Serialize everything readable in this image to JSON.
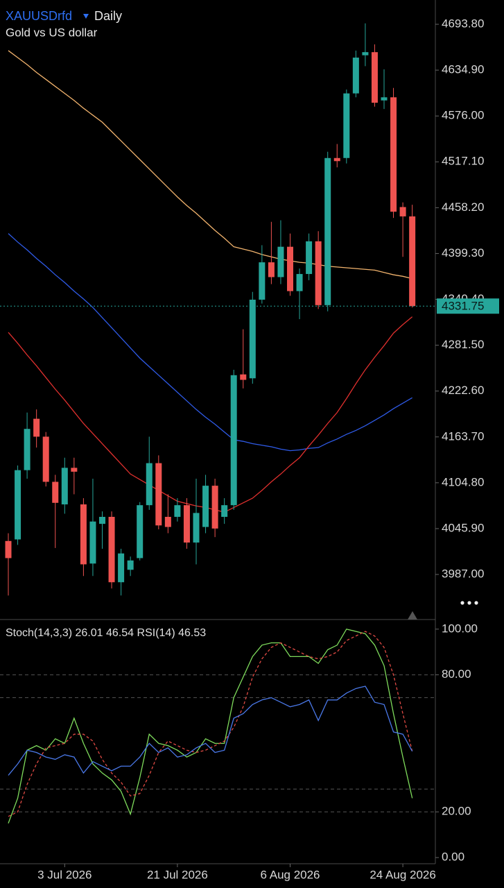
{
  "chart_data": [
    {
      "type": "candlestick",
      "title": "XAUUSDrfd",
      "timeframe": "Daily",
      "subtitle": "Gold vs US dollar",
      "categories": [
        null,
        null,
        null,
        null,
        null,
        null,
        "3 Jul 2026",
        null,
        null,
        null,
        null,
        null,
        null,
        null,
        null,
        null,
        null,
        null,
        "21 Jul 2026",
        null,
        null,
        null,
        null,
        null,
        null,
        null,
        null,
        null,
        null,
        null,
        "6 Aug 2026",
        null,
        null,
        null,
        null,
        null,
        null,
        null,
        null,
        null,
        null,
        null,
        "24 Aug 2026",
        null
      ],
      "open": [
        4030,
        4032,
        4121,
        4187,
        4164,
        4106,
        4077,
        4124,
        4077,
        4001,
        4052,
        4061,
        3977,
        3993,
        4008,
        4076,
        4130,
        4061,
        4061,
        4076,
        4028,
        4048,
        4101,
        4061,
        4076,
        4244,
        4239,
        4340,
        4388,
        4369,
        4408,
        4351,
        4373,
        4415,
        4333,
        4522,
        4522,
        4605,
        4654,
        4658,
        4596,
        4600,
        4459,
        4447
      ],
      "high": [
        4040,
        4127,
        4195,
        4199,
        4170,
        4115,
        4137,
        4137,
        4085,
        4110,
        4068,
        4068,
        4020,
        4010,
        4080,
        4164,
        4140,
        4090,
        4085,
        4085,
        4110,
        4115,
        4110,
        4085,
        4250,
        4302,
        4350,
        4410,
        4440,
        4442,
        4425,
        4380,
        4425,
        4428,
        4530,
        4540,
        4610,
        4660,
        4695,
        4668,
        4636,
        4612,
        4465,
        4462
      ],
      "low": [
        3960,
        4025,
        4110,
        4150,
        4100,
        4021,
        4065,
        4090,
        3985,
        3985,
        4020,
        3969,
        3960,
        3985,
        4005,
        4070,
        4045,
        4040,
        4055,
        4020,
        4000,
        4040,
        4035,
        4052,
        4070,
        4226,
        4232,
        4335,
        4360,
        4360,
        4345,
        4315,
        4365,
        4328,
        4325,
        4510,
        4515,
        4600,
        4640,
        4588,
        4585,
        4445,
        4395,
        4330
      ],
      "close": [
        4008,
        4121,
        4174,
        4164,
        4106,
        4079,
        4124,
        4119,
        4000,
        4055,
        4061,
        3977,
        4014,
        4005,
        4076,
        4130,
        4050,
        4048,
        4076,
        4028,
        4066,
        4101,
        4046,
        4076,
        4243,
        4237,
        4340,
        4388,
        4369,
        4408,
        4351,
        4373,
        4415,
        4333,
        4522,
        4518,
        4605,
        4651,
        4658,
        4593,
        4600,
        4453,
        4447,
        4331.75
      ],
      "up_color": "#26a69a",
      "down_color": "#ef5350",
      "moving_averages": [
        {
          "color": "#f3b46e",
          "values": [
            4660,
            4651,
            4642,
            4632,
            4623,
            4614,
            4605,
            4596,
            4586,
            4577,
            4568,
            4556,
            4544,
            4532,
            4520,
            4508,
            4496,
            4484,
            4472,
            4461,
            4451,
            4440,
            4429,
            4419,
            4408,
            4405,
            4402,
            4398,
            4395,
            4392,
            4390,
            4388,
            4387,
            4385,
            4383,
            4382,
            4381,
            4380,
            4379,
            4378,
            4375,
            4372,
            4370,
            4367
          ]
        },
        {
          "color": "#2f5be8",
          "values": [
            4425,
            4414,
            4404,
            4393,
            4383,
            4372,
            4362,
            4351,
            4341,
            4330,
            4317,
            4304,
            4291,
            4278,
            4265,
            4254,
            4243,
            4232,
            4221,
            4210,
            4199,
            4189,
            4180,
            4170,
            4160,
            4158,
            4155,
            4153,
            4151,
            4148,
            4146,
            4147,
            4149,
            4150,
            4156,
            4161,
            4167,
            4172,
            4178,
            4185,
            4192,
            4200,
            4207,
            4214
          ]
        },
        {
          "color": "#e0302e",
          "values": [
            4298,
            4284,
            4269,
            4255,
            4240,
            4225,
            4211,
            4196,
            4181,
            4168,
            4155,
            4142,
            4129,
            4116,
            4109,
            4102,
            4095,
            4088,
            4081,
            4078,
            4075,
            4073,
            4070,
            4067,
            4073,
            4079,
            4085,
            4095,
            4106,
            4116,
            4127,
            4137,
            4152,
            4166,
            4181,
            4195,
            4213,
            4232,
            4250,
            4266,
            4281,
            4297,
            4308,
            4318
          ]
        }
      ],
      "current_price": {
        "value": 4331.75,
        "label": "4331.75"
      },
      "ylim": [
        3929.1,
        4725.0
      ],
      "yticks": [
        {
          "value": 4693.8,
          "label": "4693.80"
        },
        {
          "value": 4634.9,
          "label": "4634.90"
        },
        {
          "value": 4576,
          "label": "4576.00"
        },
        {
          "value": 4517.1,
          "label": "4517.10"
        },
        {
          "value": 4458.2,
          "label": "4458.20"
        },
        {
          "value": 4399.3,
          "label": "4399.30"
        },
        {
          "value": 4340.4,
          "label": "4340.40"
        },
        {
          "value": 4281.5,
          "label": "4281.50"
        },
        {
          "value": 4222.6,
          "label": "4222.60"
        },
        {
          "value": 4163.7,
          "label": "4163.70"
        },
        {
          "value": 4104.8,
          "label": "4104.80"
        },
        {
          "value": 4045.9,
          "label": "4045.90"
        },
        {
          "value": 3987,
          "label": "3987.00"
        }
      ]
    },
    {
      "type": "line",
      "title": "Stoch(14,3,3)",
      "title2": "RSI(14)",
      "series": [
        {
          "color": "#7fdc5c",
          "values": [
            15,
            26,
            47,
            49,
            47,
            52,
            50,
            61,
            50,
            41,
            37,
            34,
            29,
            19,
            35,
            54,
            50,
            49,
            47,
            44,
            46,
            52,
            50,
            50,
            70,
            79,
            88,
            93,
            94,
            94,
            88,
            88,
            88,
            85,
            91,
            93,
            100,
            99,
            98,
            93,
            84,
            63,
            44,
            26.01
          ]
        },
        {
          "color": "#e04a44",
          "dashed": true,
          "values": [
            18,
            20,
            32,
            41,
            48,
            49,
            50,
            54,
            54,
            51,
            43,
            37,
            33,
            27,
            28,
            36,
            46,
            51,
            49,
            47,
            46,
            47,
            49,
            51,
            57,
            66,
            79,
            87,
            92,
            94,
            92,
            90,
            88,
            87,
            88,
            90,
            95,
            97,
            99,
            97,
            92,
            80,
            63,
            46.54
          ]
        },
        {
          "color": "#4a78e8",
          "values": [
            36,
            41,
            47,
            46,
            44,
            43,
            45,
            44,
            37,
            42,
            40,
            38,
            40,
            40,
            44,
            50,
            46,
            48,
            44,
            45,
            48,
            50,
            46,
            47,
            61,
            63,
            67,
            69,
            70,
            68,
            66,
            67,
            69,
            60,
            69,
            69,
            72,
            74,
            75,
            68,
            67,
            55,
            54,
            46.53
          ]
        }
      ],
      "levels": [
        80,
        70,
        30,
        20
      ],
      "ylim": [
        -2.7,
        103.6
      ],
      "yticks": [
        {
          "value": 100,
          "label": "100.00"
        },
        {
          "value": 80,
          "label": "80.00"
        },
        {
          "value": 20,
          "label": "20.00"
        },
        {
          "value": 0,
          "label": "0.00"
        }
      ]
    }
  ]
}
